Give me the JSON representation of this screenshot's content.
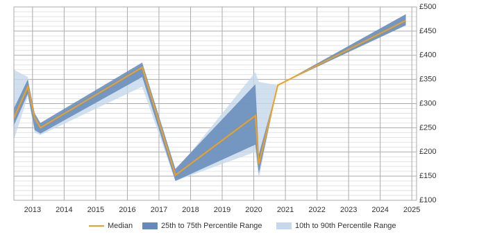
{
  "chart_data": {
    "type": "percentile-band-line",
    "x": [
      2012.41,
      2012.85,
      2013.07,
      2013.25,
      2016.47,
      2017.52,
      2020.05,
      2020.16,
      2020.76,
      2024.81
    ],
    "xlim": [
      2012.41,
      2025.15
    ],
    "xticks": [
      2013,
      2014,
      2015,
      2016,
      2017,
      2018,
      2019,
      2020,
      2021,
      2022,
      2023,
      2024,
      2025
    ],
    "ylim": [
      100,
      500
    ],
    "yticks": [
      {
        "value": 100,
        "label": "£100"
      },
      {
        "value": 150,
        "label": "£150"
      },
      {
        "value": 200,
        "label": "£200"
      },
      {
        "value": 250,
        "label": "£250"
      },
      {
        "value": 300,
        "label": "£300"
      },
      {
        "value": 350,
        "label": "£350"
      },
      {
        "value": 400,
        "label": "£400"
      },
      {
        "value": 450,
        "label": "£450"
      },
      {
        "value": 500,
        "label": "£500"
      }
    ],
    "minor_yticks": [
      110,
      120,
      130,
      140,
      160,
      170,
      180,
      190,
      210,
      220,
      230,
      240,
      260,
      270,
      280,
      290,
      310,
      320,
      330,
      340,
      360,
      370,
      380,
      390,
      410,
      420,
      430,
      440,
      460,
      470,
      480,
      490
    ],
    "grid": true,
    "legend": "bottom",
    "series": [
      {
        "name": "10th to 90th Percentile Range",
        "color": "#c6d8eb",
        "low": [
          225,
          315,
          240,
          235,
          335,
          140,
          200,
          145,
          338,
          462
        ],
        "high": [
          370,
          355,
          260,
          255,
          380,
          160,
          365,
          345,
          338,
          485
        ]
      },
      {
        "name": "25th to 75th Percentile Range",
        "color": "#6489ba",
        "low": [
          255,
          320,
          245,
          238,
          355,
          140,
          215,
          155,
          338,
          462
        ],
        "high": [
          290,
          350,
          280,
          260,
          385,
          165,
          340,
          195,
          338,
          485
        ]
      },
      {
        "name": "Median",
        "color": "#f0a01e",
        "values": [
          270,
          335,
          270,
          250,
          375,
          152,
          275,
          175,
          338,
          472
        ]
      }
    ]
  }
}
